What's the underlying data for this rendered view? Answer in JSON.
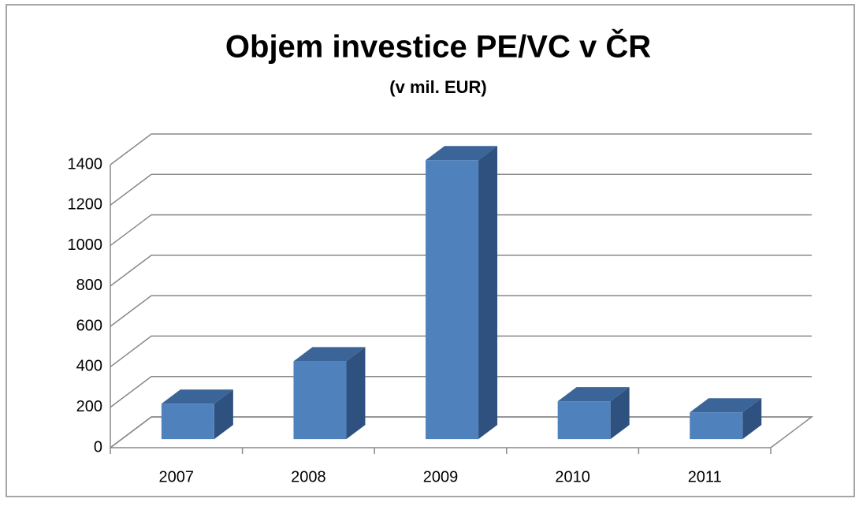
{
  "chart_data": {
    "type": "bar3d",
    "title": "Objem investice PE/VC v ČR",
    "subtitle": "(v mil. EUR)",
    "categories": [
      "2007",
      "2008",
      "2009",
      "2010",
      "2011"
    ],
    "values": [
      175,
      385,
      1380,
      187,
      132
    ],
    "color": "#4f81bd",
    "ylim": [
      0,
      1400
    ],
    "yticks": [
      0,
      200,
      400,
      600,
      800,
      1000,
      1200,
      1400
    ],
    "grid": true
  }
}
